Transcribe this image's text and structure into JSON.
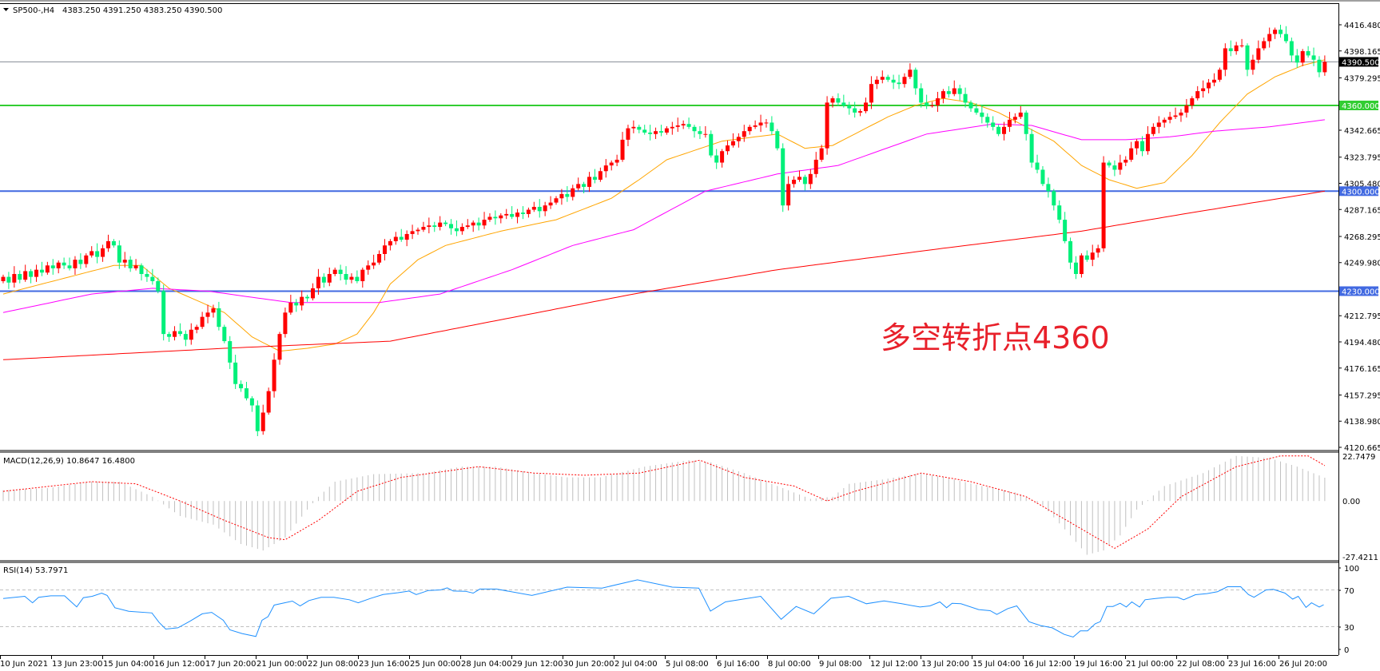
{
  "header": {
    "menu_icon": "triangle-down-icon",
    "symbol": "SP500-,H4",
    "ohlc": "4383.250 4391.250 4383.250 4390.500"
  },
  "annotation": {
    "text": "多空转折点4360",
    "color": "#e8202a"
  },
  "colors": {
    "bull": "#ff0000",
    "bear": "#00f07a",
    "ma_fast": "#ffa500",
    "ma_mid": "#ff00ff",
    "ma_slow": "#ff0000",
    "level_green": "#32cd32",
    "level_blue": "#4169e1",
    "price_line": "#8a9099",
    "macd_hist": "#c0c0c0",
    "macd_signal": "#ff0000",
    "rsi": "#1e90ff"
  },
  "price_axis": {
    "labels": [
      "4416.480",
      "4398.165",
      "4379.295",
      "4342.665",
      "4323.795",
      "4305.480",
      "4287.165",
      "4268.295",
      "4249.980",
      "4212.795",
      "4194.480",
      "4176.165",
      "4157.295",
      "4138.980",
      "4120.665"
    ],
    "current_price": "4390.500",
    "levels": [
      {
        "value": "4360.000",
        "color": "#32cd32"
      },
      {
        "value": "4300.000",
        "color": "#4169e1"
      },
      {
        "value": "4230.000",
        "color": "#4169e1"
      }
    ]
  },
  "time_axis": {
    "labels": [
      "10 Jun 2021",
      "13 Jun 23:00",
      "15 Jun 04:00",
      "16 Jun 12:00",
      "17 Jun 20:00",
      "21 Jun 00:00",
      "22 Jun 08:00",
      "23 Jun 16:00",
      "25 Jun 00:00",
      "28 Jun 04:00",
      "29 Jun 12:00",
      "30 Jun 20:00",
      "2 Jul 04:00",
      "5 Jul 08:00",
      "6 Jul 16:00",
      "8 Jul 00:00",
      "9 Jul 08:00",
      "12 Jul 12:00",
      "13 Jul 20:00",
      "15 Jul 04:00",
      "16 Jul 12:00",
      "19 Jul 16:00",
      "21 Jul 00:00",
      "22 Jul 08:00",
      "23 Jul 16:00",
      "26 Jul 20:00"
    ]
  },
  "macd": {
    "label": "MACD(12,26,9) 10.8647 16.4800",
    "axis_labels": [
      "22.7479",
      "0.00",
      "-27.4211"
    ]
  },
  "rsi": {
    "label": "RSI(14) 53.7971",
    "axis_labels": [
      "100",
      "70",
      "30",
      "0"
    ]
  },
  "chart_data": {
    "type": "candlestick",
    "symbol": "SP500-",
    "timeframe": "H4",
    "ylim": [
      4120.665,
      4416.48
    ],
    "closes": [
      4240,
      4236,
      4242,
      4238,
      4244,
      4240,
      4245,
      4243,
      4248,
      4246,
      4250,
      4248,
      4246,
      4252,
      4249,
      4255,
      4258,
      4254,
      4260,
      4265,
      4262,
      4250,
      4252,
      4246,
      4248,
      4242,
      4240,
      4237,
      4230,
      4200,
      4198,
      4202,
      4200,
      4196,
      4203,
      4205,
      4212,
      4215,
      4218,
      4205,
      4195,
      4180,
      4165,
      4162,
      4155,
      4150,
      4132,
      4145,
      4160,
      4182,
      4200,
      4215,
      4222,
      4220,
      4226,
      4225,
      4232,
      4240,
      4236,
      4242,
      4245,
      4242,
      4238,
      4240,
      4237,
      4245,
      4248,
      4250,
      4256,
      4262,
      4265,
      4268,
      4266,
      4270,
      4272,
      4273,
      4275,
      4276,
      4275,
      4278,
      4277,
      4274,
      4272,
      4275,
      4276,
      4278,
      4276,
      4280,
      4282,
      4281,
      4283,
      4284,
      4282,
      4285,
      4284,
      4287,
      4289,
      4286,
      4290,
      4292,
      4295,
      4298,
      4296,
      4302,
      4305,
      4303,
      4310,
      4308,
      4314,
      4318,
      4320,
      4322,
      4336,
      4344,
      4345,
      4343,
      4341,
      4340,
      4342,
      4341,
      4344,
      4345,
      4346,
      4347,
      4345,
      4342,
      4340,
      4340,
      4325,
      4320,
      4328,
      4332,
      4335,
      4338,
      4342,
      4345,
      4346,
      4348,
      4348,
      4342,
      4330,
      4290,
      4305,
      4308,
      4310,
      4305,
      4312,
      4322,
      4330,
      4362,
      4365,
      4362,
      4360,
      4358,
      4355,
      4356,
      4362,
      4375,
      4378,
      4380,
      4378,
      4376,
      4375,
      4380,
      4385,
      4372,
      4362,
      4360,
      4360,
      4365,
      4370,
      4368,
      4372,
      4368,
      4362,
      4358,
      4355,
      4352,
      4348,
      4345,
      4340,
      4345,
      4350,
      4352,
      4355,
      4340,
      4320,
      4315,
      4305,
      4300,
      4290,
      4280,
      4265,
      4250,
      4242,
      4255,
      4252,
      4257,
      4260,
      4320,
      4318,
      4315,
      4320,
      4322,
      4330,
      4335,
      4328,
      4340,
      4345,
      4348,
      4350,
      4352,
      4353,
      4355,
      4360,
      4365,
      4370,
      4372,
      4376,
      4378,
      4385,
      4400,
      4398,
      4402,
      4402,
      4385,
      4392,
      4400,
      4405,
      4410,
      4413,
      4410,
      4405,
      4395,
      4390,
      4398,
      4395,
      4392,
      4383.25,
      4390.5
    ],
    "last_bar": {
      "open": 4383.25,
      "high": 4391.25,
      "low": 4383.25,
      "close": 4390.5
    },
    "ma_lines": [
      {
        "color": "#ffa500",
        "points": [
          [
            0,
            4228
          ],
          [
            10,
            4238
          ],
          [
            20,
            4248
          ],
          [
            25,
            4248
          ],
          [
            30,
            4232
          ],
          [
            40,
            4215
          ],
          [
            45,
            4198
          ],
          [
            50,
            4188
          ],
          [
            55,
            4190
          ],
          [
            60,
            4193
          ],
          [
            64,
            4200
          ],
          [
            67,
            4215
          ],
          [
            70,
            4235
          ],
          [
            75,
            4252
          ],
          [
            80,
            4262
          ],
          [
            90,
            4272
          ],
          [
            100,
            4280
          ],
          [
            110,
            4295
          ],
          [
            115,
            4308
          ],
          [
            120,
            4322
          ],
          [
            130,
            4335
          ],
          [
            140,
            4340
          ],
          [
            145,
            4330
          ],
          [
            150,
            4332
          ],
          [
            155,
            4342
          ],
          [
            160,
            4352
          ],
          [
            165,
            4360
          ],
          [
            170,
            4365
          ],
          [
            175,
            4362
          ],
          [
            180,
            4355
          ],
          [
            185,
            4345
          ],
          [
            190,
            4335
          ],
          [
            195,
            4318
          ],
          [
            200,
            4308
          ],
          [
            205,
            4302
          ],
          [
            210,
            4306
          ],
          [
            215,
            4325
          ],
          [
            220,
            4348
          ],
          [
            225,
            4368
          ],
          [
            230,
            4380
          ],
          [
            235,
            4388
          ],
          [
            239,
            4392
          ]
        ]
      },
      {
        "color": "#ff00ff",
        "points": [
          [
            0,
            4215
          ],
          [
            16,
            4228
          ],
          [
            27,
            4232
          ],
          [
            37,
            4230
          ],
          [
            52,
            4222
          ],
          [
            68,
            4222
          ],
          [
            79,
            4228
          ],
          [
            92,
            4245
          ],
          [
            103,
            4262
          ],
          [
            114,
            4273
          ],
          [
            127,
            4300
          ],
          [
            140,
            4312
          ],
          [
            151,
            4318
          ],
          [
            167,
            4340
          ],
          [
            179,
            4347
          ],
          [
            186,
            4346
          ],
          [
            195,
            4336
          ],
          [
            203,
            4336
          ],
          [
            211,
            4338
          ],
          [
            219,
            4342
          ],
          [
            229,
            4345
          ],
          [
            239,
            4350
          ]
        ]
      },
      {
        "color": "#ff0000",
        "points": [
          [
            0,
            4182
          ],
          [
            40,
            4190
          ],
          [
            70,
            4195
          ],
          [
            90,
            4210
          ],
          [
            114,
            4228
          ],
          [
            140,
            4245
          ],
          [
            170,
            4260
          ],
          [
            195,
            4272
          ],
          [
            215,
            4285
          ],
          [
            239,
            4300
          ]
        ]
      }
    ],
    "macd_histogram": [
      [
        0,
        5
      ],
      [
        8,
        6
      ],
      [
        16,
        9
      ],
      [
        21,
        9
      ],
      [
        27,
        2
      ],
      [
        32,
        -7
      ],
      [
        38,
        -11
      ],
      [
        43,
        -20
      ],
      [
        47,
        -23
      ],
      [
        51,
        -17
      ],
      [
        55,
        -4
      ],
      [
        57,
        2
      ],
      [
        60,
        9
      ],
      [
        67,
        12.5
      ],
      [
        76,
        13
      ],
      [
        83,
        16
      ],
      [
        89,
        16
      ],
      [
        96,
        13
      ],
      [
        102,
        11
      ],
      [
        108,
        11
      ],
      [
        116,
        16
      ],
      [
        124,
        19
      ],
      [
        128,
        18
      ],
      [
        134,
        13
      ],
      [
        140,
        7
      ],
      [
        146,
        1
      ],
      [
        150,
        2
      ],
      [
        153,
        8
      ],
      [
        159,
        10
      ],
      [
        166,
        13
      ],
      [
        172,
        10
      ],
      [
        177,
        7
      ],
      [
        183,
        4
      ],
      [
        188,
        -2
      ],
      [
        193,
        -16
      ],
      [
        196,
        -25
      ],
      [
        199,
        -23
      ],
      [
        202,
        -16
      ],
      [
        205,
        -4
      ],
      [
        210,
        7
      ],
      [
        217,
        13
      ],
      [
        223,
        21
      ],
      [
        229,
        20
      ],
      [
        234,
        16
      ],
      [
        239,
        10.86
      ]
    ],
    "macd_signal": [
      [
        0,
        4.5
      ],
      [
        16,
        9
      ],
      [
        24,
        8
      ],
      [
        32,
        0
      ],
      [
        40,
        -9
      ],
      [
        48,
        -17
      ],
      [
        51,
        -18
      ],
      [
        57,
        -9
      ],
      [
        64,
        4.5
      ],
      [
        72,
        11
      ],
      [
        86,
        16
      ],
      [
        96,
        13
      ],
      [
        105,
        12
      ],
      [
        115,
        13
      ],
      [
        126,
        19
      ],
      [
        134,
        11
      ],
      [
        143,
        7
      ],
      [
        149,
        0
      ],
      [
        154,
        4.5
      ],
      [
        166,
        13
      ],
      [
        175,
        9
      ],
      [
        185,
        2
      ],
      [
        191,
        -7
      ],
      [
        201,
        -22
      ],
      [
        207,
        -13
      ],
      [
        213,
        2
      ],
      [
        223,
        16
      ],
      [
        231,
        21
      ],
      [
        236,
        21
      ],
      [
        239,
        16.48
      ]
    ],
    "macd_ylim": [
      -27.4211,
      22.7479
    ],
    "rsi_values": [
      [
        0,
        60.7
      ],
      [
        3.9,
        63
      ],
      [
        5.3,
        56
      ],
      [
        6.4,
        62
      ],
      [
        8.6,
        63.6
      ],
      [
        11.1,
        63.6
      ],
      [
        13.3,
        51.5
      ],
      [
        14.5,
        61.6
      ],
      [
        16.1,
        63
      ],
      [
        17.8,
        66.5
      ],
      [
        18.8,
        64
      ],
      [
        20.2,
        50.6
      ],
      [
        22.7,
        46.8
      ],
      [
        26.9,
        45
      ],
      [
        28.2,
        34.6
      ],
      [
        29.4,
        27.4
      ],
      [
        31.6,
        28.8
      ],
      [
        33.8,
        36
      ],
      [
        36,
        44
      ],
      [
        37.7,
        45.6
      ],
      [
        39.8,
        37
      ],
      [
        41,
        26.5
      ],
      [
        43.2,
        22.5
      ],
      [
        45.7,
        19.3
      ],
      [
        46.8,
        37
      ],
      [
        47.9,
        41
      ],
      [
        49,
        53.5
      ],
      [
        52.3,
        57.8
      ],
      [
        53.7,
        52.6
      ],
      [
        55.3,
        58.4
      ],
      [
        57.5,
        61.9
      ],
      [
        59.8,
        61.9
      ],
      [
        62.6,
        59.3
      ],
      [
        64.2,
        56
      ],
      [
        66.4,
        60.7
      ],
      [
        68.7,
        65
      ],
      [
        71.4,
        67
      ],
      [
        73.4,
        68.8
      ],
      [
        74.7,
        65
      ],
      [
        76.9,
        69.4
      ],
      [
        79.1,
        70
      ],
      [
        80.3,
        72.3
      ],
      [
        81.4,
        68.8
      ],
      [
        83.6,
        68.5
      ],
      [
        85,
        66.5
      ],
      [
        86.2,
        71
      ],
      [
        89.2,
        71
      ],
      [
        95.6,
        64
      ],
      [
        102,
        73
      ],
      [
        108.3,
        72
      ],
      [
        114.7,
        81
      ],
      [
        121,
        73
      ],
      [
        125.8,
        72
      ],
      [
        127.9,
        47
      ],
      [
        130.6,
        57
      ],
      [
        137,
        63
      ],
      [
        140.7,
        38
      ],
      [
        143.4,
        52
      ],
      [
        146.6,
        44
      ],
      [
        149.7,
        61
      ],
      [
        152.9,
        63
      ],
      [
        156.1,
        55
      ],
      [
        159.3,
        58
      ],
      [
        162.5,
        55
      ],
      [
        165.8,
        51.4
      ],
      [
        167.6,
        52.6
      ],
      [
        169.4,
        57
      ],
      [
        170.6,
        50.6
      ],
      [
        171.6,
        55.5
      ],
      [
        173.2,
        55
      ],
      [
        176.4,
        48.6
      ],
      [
        178.5,
        47.4
      ],
      [
        179.7,
        43.3
      ],
      [
        181.7,
        49.7
      ],
      [
        183.3,
        52.6
      ],
      [
        185.5,
        35.4
      ],
      [
        187.6,
        31.2
      ],
      [
        189.7,
        28.8
      ],
      [
        191.9,
        21.6
      ],
      [
        193.5,
        18.7
      ],
      [
        194.8,
        25.4
      ],
      [
        196.1,
        25.4
      ],
      [
        197.5,
        33.2
      ],
      [
        198.4,
        35.4
      ],
      [
        199.6,
        52
      ],
      [
        200.7,
        52
      ],
      [
        202,
        55.5
      ],
      [
        203.1,
        51.4
      ],
      [
        204.1,
        57
      ],
      [
        205.5,
        51.4
      ],
      [
        206.5,
        59.3
      ],
      [
        208.4,
        60.7
      ],
      [
        210.5,
        61.9
      ],
      [
        212.4,
        61.9
      ],
      [
        213.5,
        59.3
      ],
      [
        215.6,
        64.8
      ],
      [
        217.7,
        66
      ],
      [
        219.6,
        68
      ],
      [
        221.4,
        73.5
      ],
      [
        223.8,
        73.5
      ],
      [
        225.2,
        65
      ],
      [
        226.2,
        62
      ],
      [
        228.4,
        70
      ],
      [
        229.7,
        70.6
      ],
      [
        231.8,
        66.5
      ],
      [
        233.2,
        60
      ],
      [
        234.2,
        63
      ],
      [
        235.6,
        51
      ],
      [
        236.6,
        56
      ],
      [
        238,
        51.4
      ],
      [
        238.8,
        53.8
      ]
    ],
    "rsi_levels": [
      70,
      30
    ],
    "rsi_ylim": [
      0,
      100
    ]
  }
}
